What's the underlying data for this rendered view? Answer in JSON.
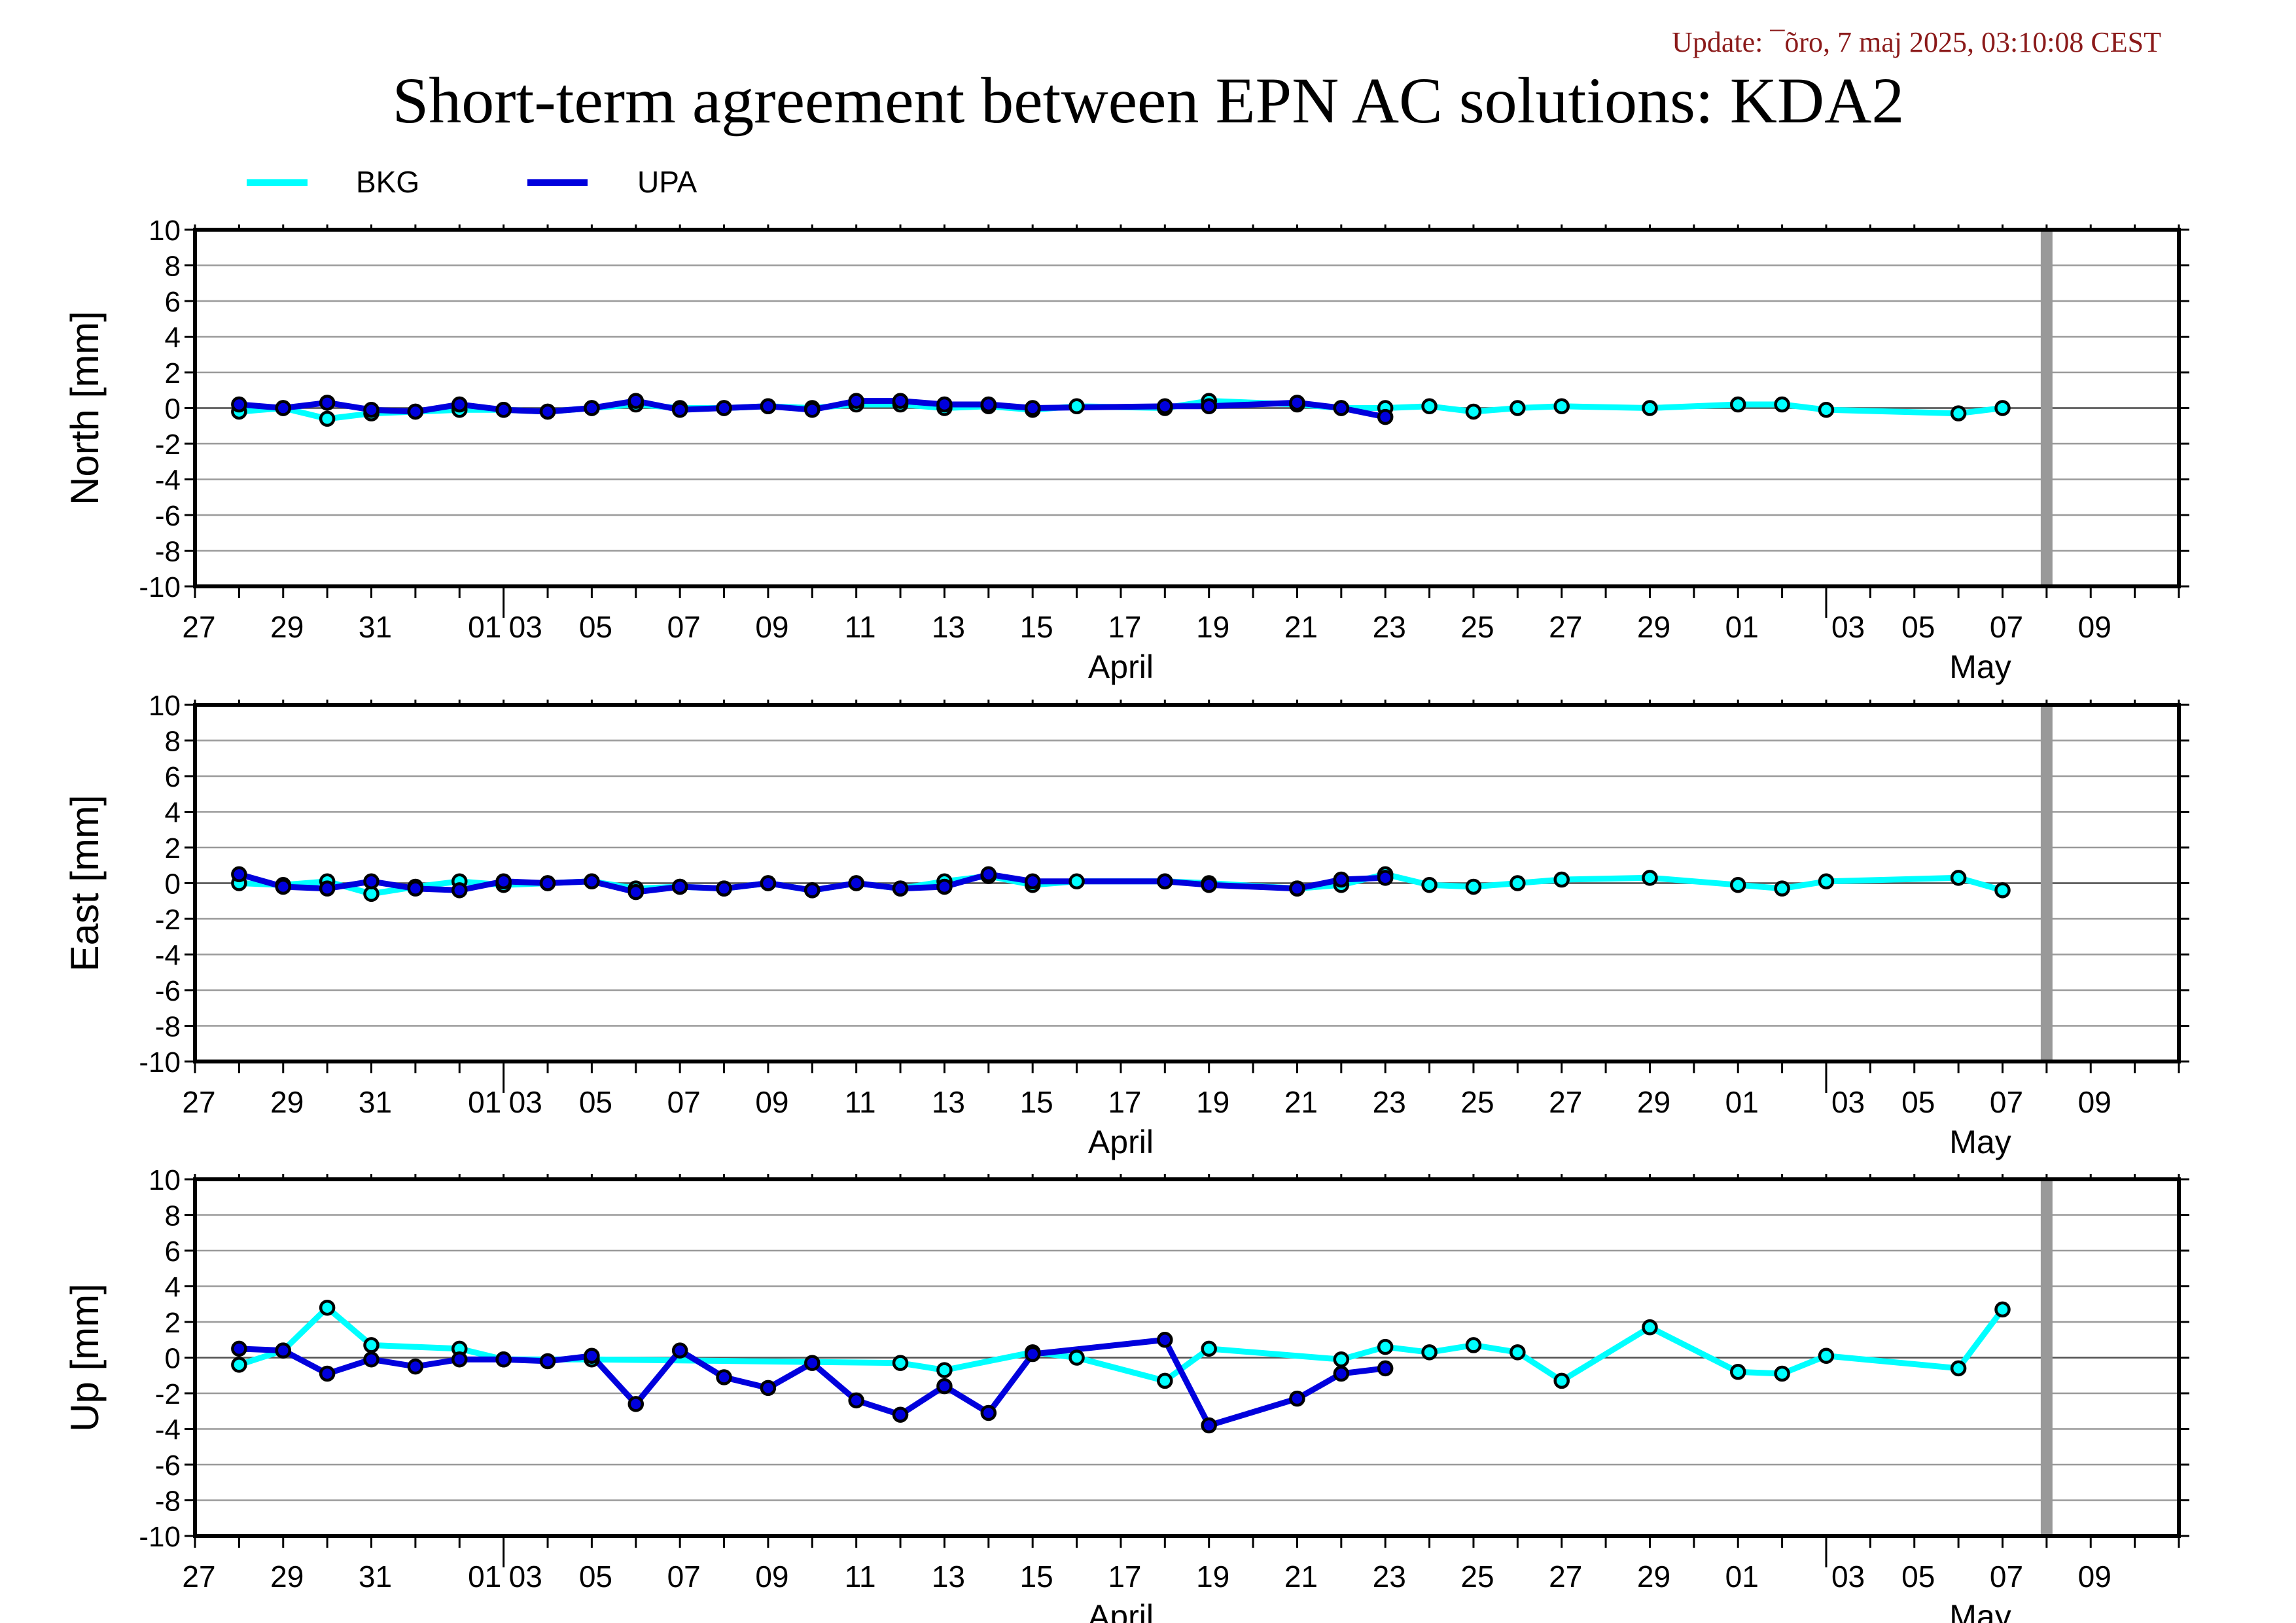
{
  "update_text": "Update: ¯õro, 7 maj 2025, 03:10:08 CEST",
  "title": "Short-term agreement between EPN AC solutions: KDA2",
  "colors": {
    "bkg": "#00ffff",
    "upa": "#0000dd",
    "update": "#8b1a1a",
    "marker_line": "#888888"
  },
  "legend": [
    {
      "name": "BKG",
      "color": "#00ffff"
    },
    {
      "name": "UPA",
      "color": "#0000dd"
    }
  ],
  "chart_data": [
    {
      "type": "line",
      "ylabel": "North [mm]",
      "ylim": [
        -10,
        10
      ],
      "yticks": [
        10,
        8,
        6,
        4,
        2,
        0,
        -2,
        -4,
        -6,
        -8,
        -10
      ],
      "xlim": [
        "2025-03-25",
        "2025-05-09"
      ],
      "xtick_labels": [
        "27",
        "29",
        "31",
        "01",
        "03",
        "05",
        "07",
        "09",
        "11",
        "13",
        "15",
        "17",
        "19",
        "21",
        "23",
        "25",
        "27",
        "29",
        "01",
        "03",
        "05",
        "07",
        "09"
      ],
      "month_labels": [
        "April",
        "May"
      ],
      "vertical_marker": "2025-05-06",
      "grid": true,
      "series": [
        {
          "name": "BKG",
          "x": [
            "2025-03-26",
            "2025-03-27",
            "2025-03-28",
            "2025-03-29",
            "2025-03-30",
            "2025-03-31",
            "2025-04-01",
            "2025-04-02",
            "2025-04-03",
            "2025-04-04",
            "2025-04-05",
            "2025-04-06",
            "2025-04-07",
            "2025-04-08",
            "2025-04-09",
            "2025-04-10",
            "2025-04-11",
            "2025-04-12",
            "2025-04-13",
            "2025-04-14",
            "2025-04-16",
            "2025-04-17",
            "2025-04-19",
            "2025-04-20",
            "2025-04-21",
            "2025-04-22",
            "2025-04-23",
            "2025-04-24",
            "2025-04-25",
            "2025-04-27",
            "2025-04-29",
            "2025-04-30",
            "2025-05-01",
            "2025-05-04",
            "2025-05-05"
          ],
          "values": [
            -0.2,
            0.0,
            -0.6,
            -0.3,
            -0.2,
            -0.1,
            -0.1,
            -0.2,
            0.0,
            0.2,
            0.0,
            0.0,
            0.1,
            0.0,
            0.2,
            0.2,
            0.0,
            0.1,
            -0.1,
            0.1,
            0.0,
            0.4,
            0.2,
            0.0,
            0.0,
            0.1,
            -0.2,
            0.0,
            0.1,
            0.0,
            0.2,
            0.2,
            -0.1,
            -0.3,
            0.0
          ]
        },
        {
          "name": "UPA",
          "x": [
            "2025-03-26",
            "2025-03-27",
            "2025-03-28",
            "2025-03-29",
            "2025-03-30",
            "2025-03-31",
            "2025-04-01",
            "2025-04-02",
            "2025-04-03",
            "2025-04-04",
            "2025-04-05",
            "2025-04-06",
            "2025-04-07",
            "2025-04-08",
            "2025-04-09",
            "2025-04-10",
            "2025-04-11",
            "2025-04-12",
            "2025-04-13",
            "2025-04-16",
            "2025-04-17",
            "2025-04-19",
            "2025-04-20",
            "2025-04-21"
          ],
          "values": [
            0.2,
            0.0,
            0.3,
            -0.1,
            -0.2,
            0.2,
            -0.1,
            -0.2,
            0.0,
            0.4,
            -0.1,
            0.0,
            0.1,
            -0.1,
            0.4,
            0.4,
            0.2,
            0.2,
            0.0,
            0.1,
            0.1,
            0.3,
            0.0,
            -0.5
          ]
        }
      ]
    },
    {
      "type": "line",
      "ylabel": "East [mm]",
      "ylim": [
        -10,
        10
      ],
      "yticks": [
        10,
        8,
        6,
        4,
        2,
        0,
        -2,
        -4,
        -6,
        -8,
        -10
      ],
      "xlim": [
        "2025-03-25",
        "2025-05-09"
      ],
      "xtick_labels": [
        "27",
        "29",
        "31",
        "01",
        "03",
        "05",
        "07",
        "09",
        "11",
        "13",
        "15",
        "17",
        "19",
        "21",
        "23",
        "25",
        "27",
        "29",
        "01",
        "03",
        "05",
        "07",
        "09"
      ],
      "month_labels": [
        "April",
        "May"
      ],
      "vertical_marker": "2025-05-06",
      "grid": true,
      "series": [
        {
          "name": "BKG",
          "x": [
            "2025-03-26",
            "2025-03-27",
            "2025-03-28",
            "2025-03-29",
            "2025-03-30",
            "2025-03-31",
            "2025-04-01",
            "2025-04-02",
            "2025-04-03",
            "2025-04-04",
            "2025-04-05",
            "2025-04-06",
            "2025-04-07",
            "2025-04-08",
            "2025-04-09",
            "2025-04-10",
            "2025-04-11",
            "2025-04-12",
            "2025-04-13",
            "2025-04-14",
            "2025-04-16",
            "2025-04-17",
            "2025-04-19",
            "2025-04-20",
            "2025-04-21",
            "2025-04-22",
            "2025-04-23",
            "2025-04-24",
            "2025-04-25",
            "2025-04-27",
            "2025-04-29",
            "2025-04-30",
            "2025-05-01",
            "2025-05-04",
            "2025-05-05"
          ],
          "values": [
            0.0,
            -0.1,
            0.1,
            -0.6,
            -0.2,
            0.1,
            -0.1,
            0.0,
            0.1,
            -0.3,
            -0.2,
            -0.3,
            0.0,
            -0.4,
            0.0,
            -0.3,
            0.1,
            0.4,
            -0.1,
            0.1,
            0.1,
            0.0,
            -0.3,
            -0.1,
            0.5,
            -0.1,
            -0.2,
            0.0,
            0.2,
            0.3,
            -0.1,
            -0.3,
            0.1,
            0.3,
            -0.4
          ]
        },
        {
          "name": "UPA",
          "x": [
            "2025-03-26",
            "2025-03-27",
            "2025-03-28",
            "2025-03-29",
            "2025-03-30",
            "2025-03-31",
            "2025-04-01",
            "2025-04-02",
            "2025-04-03",
            "2025-04-04",
            "2025-04-05",
            "2025-04-06",
            "2025-04-07",
            "2025-04-08",
            "2025-04-09",
            "2025-04-10",
            "2025-04-11",
            "2025-04-12",
            "2025-04-13",
            "2025-04-16",
            "2025-04-17",
            "2025-04-19",
            "2025-04-20",
            "2025-04-21"
          ],
          "values": [
            0.5,
            -0.2,
            -0.3,
            0.1,
            -0.3,
            -0.4,
            0.1,
            0.0,
            0.1,
            -0.5,
            -0.2,
            -0.3,
            0.0,
            -0.4,
            0.0,
            -0.3,
            -0.2,
            0.5,
            0.1,
            0.1,
            -0.1,
            -0.3,
            0.2,
            0.3
          ]
        }
      ]
    },
    {
      "type": "line",
      "ylabel": "Up [mm]",
      "ylim": [
        -10,
        10
      ],
      "yticks": [
        10,
        8,
        6,
        4,
        2,
        0,
        -2,
        -4,
        -6,
        -8,
        -10
      ],
      "xlim": [
        "2025-03-25",
        "2025-05-09"
      ],
      "xtick_labels": [
        "27",
        "29",
        "31",
        "01",
        "03",
        "05",
        "07",
        "09",
        "11",
        "13",
        "15",
        "17",
        "19",
        "21",
        "23",
        "25",
        "27",
        "29",
        "01",
        "03",
        "05",
        "07",
        "09"
      ],
      "month_labels": [
        "April",
        "May"
      ],
      "vertical_marker": "2025-05-06",
      "grid": true,
      "series": [
        {
          "name": "BKG",
          "x": [
            "2025-03-26",
            "2025-03-27",
            "2025-03-28",
            "2025-03-29",
            "2025-03-31",
            "2025-04-01",
            "2025-04-03",
            "2025-04-10",
            "2025-04-11",
            "2025-04-13",
            "2025-04-14",
            "2025-04-16",
            "2025-04-17",
            "2025-04-20",
            "2025-04-21",
            "2025-04-22",
            "2025-04-23",
            "2025-04-24",
            "2025-04-25",
            "2025-04-27",
            "2025-04-29",
            "2025-04-30",
            "2025-05-01",
            "2025-05-04",
            "2025-05-05"
          ],
          "values": [
            -0.4,
            0.4,
            2.8,
            0.7,
            0.5,
            -0.1,
            -0.1,
            -0.3,
            -0.7,
            0.3,
            0.0,
            -1.3,
            0.5,
            -0.1,
            0.6,
            0.3,
            0.7,
            0.3,
            -1.3,
            1.7,
            -0.8,
            -0.9,
            0.1,
            -0.6,
            2.7
          ]
        },
        {
          "name": "UPA",
          "x": [
            "2025-03-26",
            "2025-03-27",
            "2025-03-28",
            "2025-03-29",
            "2025-03-30",
            "2025-03-31",
            "2025-04-01",
            "2025-04-02",
            "2025-04-03",
            "2025-04-04",
            "2025-04-05",
            "2025-04-06",
            "2025-04-07",
            "2025-04-08",
            "2025-04-09",
            "2025-04-10",
            "2025-04-11",
            "2025-04-12",
            "2025-04-13",
            "2025-04-16",
            "2025-04-17",
            "2025-04-19",
            "2025-04-20",
            "2025-04-21"
          ],
          "values": [
            0.5,
            0.4,
            -0.9,
            -0.1,
            -0.5,
            -0.1,
            -0.1,
            -0.2,
            0.1,
            -2.6,
            0.4,
            -1.1,
            -1.7,
            -0.3,
            -2.4,
            -3.2,
            -1.6,
            -3.1,
            0.2,
            1.0,
            -3.8,
            -2.3,
            -0.9,
            -0.6
          ]
        }
      ]
    }
  ]
}
